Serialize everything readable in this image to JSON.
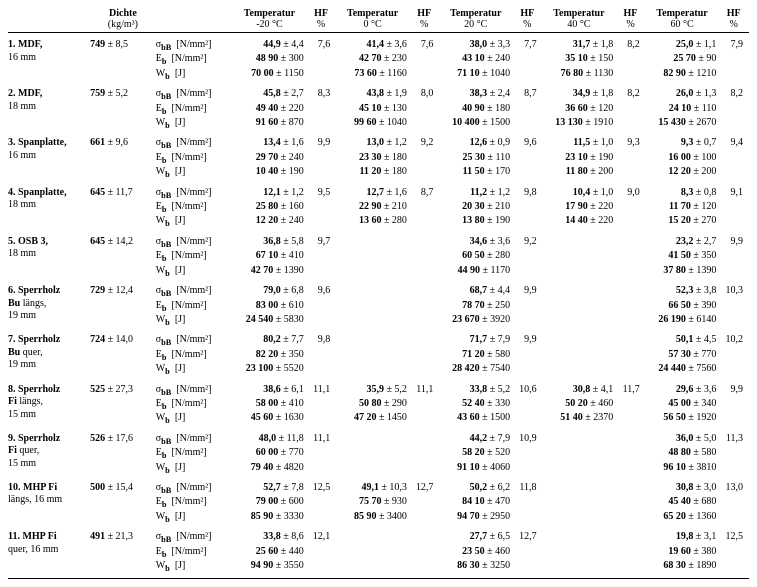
{
  "headers": {
    "dichte": "Dichte",
    "dichte_unit": "(kg/m³)",
    "temp": "Temperatur",
    "hf": "HF",
    "hf_unit": "%",
    "temps": [
      "-20 °C",
      "0 °C",
      "20 °C",
      "40 °C",
      "60 °C"
    ]
  },
  "props": {
    "sigma": "σ_bB  [N/mm²]",
    "e": "E_b  [N/mm²]",
    "w": "W_b  [J]"
  },
  "rows": [
    {
      "mat1": "1. MDF,",
      "mat2": "16 mm",
      "dichte": "749 ± 8,5",
      "t": [
        {
          "s": "44,9 ± 4,4",
          "e": "48 90 ± 300",
          "w": "70 00 ± 1150",
          "hf": "7,6"
        },
        {
          "s": "41,4 ± 3,6",
          "e": "42 70 ± 230",
          "w": "73 60 ± 1160",
          "hf": "7,6"
        },
        {
          "s": "38,0 ± 3,3",
          "e": "43 10 ± 240",
          "w": "71 10 ± 1040",
          "hf": "7,7"
        },
        {
          "s": "31,7 ± 1,8",
          "e": "35 10 ± 150",
          "w": "76 80 ± 1130",
          "hf": "8,2"
        },
        {
          "s": "25,0 ± 1,1",
          "e": "25 70 ± 90",
          "w": "82 90 ± 1210",
          "hf": "7,9"
        }
      ]
    },
    {
      "mat1": "2. MDF,",
      "mat2": "18 mm",
      "dichte": "759 ± 5,2",
      "t": [
        {
          "s": "45,8 ± 2,7",
          "e": "49 40 ± 220",
          "w": "91 60 ± 870",
          "hf": "8,3"
        },
        {
          "s": "43,8 ± 1,9",
          "e": "45 10 ± 130",
          "w": "99 60 ± 1040",
          "hf": "8,0"
        },
        {
          "s": "38,3 ± 2,4",
          "e": "40 90 ± 180",
          "w": "10 400 ± 1500",
          "hf": "8,7"
        },
        {
          "s": "34,9 ± 1,8",
          "e": "36 60 ± 120",
          "w": "13 130 ± 1910",
          "hf": "8,2"
        },
        {
          "s": "26,0 ± 1,3",
          "e": "24 10 ± 110",
          "w": "15 430 ± 2670",
          "hf": "8,2"
        }
      ]
    },
    {
      "mat1": "3. Spanplatte,",
      "mat2": "16 mm",
      "dichte": "661 ± 9,6",
      "t": [
        {
          "s": "13,4 ± 1,6",
          "e": "29 70 ± 240",
          "w": "10 40 ± 190",
          "hf": "9,9"
        },
        {
          "s": "13,0 ± 1,2",
          "e": "23 30 ± 180",
          "w": "11 20 ± 180",
          "hf": "9,2"
        },
        {
          "s": "12,6 ± 0,9",
          "e": "25 30 ± 110",
          "w": "11 50 ± 170",
          "hf": "9,6"
        },
        {
          "s": "11,5 ± 1,0",
          "e": "23 10 ± 190",
          "w": "11 80 ± 200",
          "hf": "9,3"
        },
        {
          "s": "9,3 ± 0,7",
          "e": "16 00 ± 100",
          "w": "12 20 ± 200",
          "hf": "9,4"
        }
      ]
    },
    {
      "mat1": "4. Spanplatte,",
      "mat2": "18 mm",
      "dichte": "645 ± 11,7",
      "t": [
        {
          "s": "12,1 ± 1,2",
          "e": "25 80 ± 160",
          "w": "12 20 ± 240",
          "hf": "9,5"
        },
        {
          "s": "12,7 ± 1,6",
          "e": "22 90 ± 210",
          "w": "13 60 ± 280",
          "hf": "8,7"
        },
        {
          "s": "11,2 ± 1,2",
          "e": "20 30 ± 210",
          "w": "13 80 ± 190",
          "hf": "9,8"
        },
        {
          "s": "10,4 ± 1,0",
          "e": "17 90 ± 220",
          "w": "14 40 ± 220",
          "hf": "9,0"
        },
        {
          "s": "8,3 ± 0,8",
          "e": "11 70 ± 120",
          "w": "15 20 ± 270",
          "hf": "9,1"
        }
      ]
    },
    {
      "mat1": "5. OSB 3,",
      "mat2": "18 mm",
      "dichte": "645 ± 14,2",
      "t": [
        {
          "s": "36,8 ± 5,8",
          "e": "67 10 ± 410",
          "w": "42 70 ± 1390",
          "hf": "9,7"
        },
        {
          "s": "",
          "e": "",
          "w": "",
          "hf": ""
        },
        {
          "s": "34,6 ± 3,6",
          "e": "60 50 ± 280",
          "w": "44 90 ± 1170",
          "hf": "9,2"
        },
        {
          "s": "",
          "e": "",
          "w": "",
          "hf": ""
        },
        {
          "s": "23,2 ± 2,7",
          "e": "41 50 ± 350",
          "w": "37 80 ± 1390",
          "hf": "9,9"
        }
      ]
    },
    {
      "mat1": "6. Sperrholz",
      "mat2b": "Bu",
      "mat2c": " längs,",
      "mat3": "19 mm",
      "dichte": "729 ± 12,4",
      "t": [
        {
          "s": "79,0 ± 6,8",
          "e": "83 00 ± 610",
          "w": "24 540 ± 5830",
          "hf": "9,6"
        },
        {
          "s": "",
          "e": "",
          "w": "",
          "hf": ""
        },
        {
          "s": "68,7 ± 4,4",
          "e": "78 70 ± 250",
          "w": "23 670 ± 3920",
          "hf": "9,9"
        },
        {
          "s": "",
          "e": "",
          "w": "",
          "hf": ""
        },
        {
          "s": "52,3 ± 3,8",
          "e": "66 50 ± 390",
          "w": "26 190 ± 6140",
          "hf": "10,3"
        }
      ]
    },
    {
      "mat1": "7. Sperrholz",
      "mat2b": "Bu",
      "mat2c": " quer,",
      "mat3": "19 mm",
      "dichte": "724 ± 14,0",
      "t": [
        {
          "s": "80,2 ± 7,7",
          "e": "82 20 ± 350",
          "w": "23 100 ± 5520",
          "hf": "9,8"
        },
        {
          "s": "",
          "e": "",
          "w": "",
          "hf": ""
        },
        {
          "s": "71,7 ± 7,9",
          "e": "71 20 ± 580",
          "w": "28 420 ± 7540",
          "hf": "9,9"
        },
        {
          "s": "",
          "e": "",
          "w": "",
          "hf": ""
        },
        {
          "s": "50,1 ± 4,5",
          "e": "57 30 ± 770",
          "w": "24 440 ± 7560",
          "hf": "10,2"
        }
      ]
    },
    {
      "mat1": "8. Sperrholz",
      "mat2b": "Fi",
      "mat2c": " längs,",
      "mat3": "15 mm",
      "dichte": "525 ± 27,3",
      "t": [
        {
          "s": "38,6 ± 6,1",
          "e": "58 00 ± 410",
          "w": "45 60 ± 1630",
          "hf": "11,1"
        },
        {
          "s": "35,9 ± 5,2",
          "e": "50 80 ± 290",
          "w": "47 20 ± 1450",
          "hf": "11,1"
        },
        {
          "s": "33,8 ± 5,2",
          "e": "52 40 ± 330",
          "w": "43 60 ± 1500",
          "hf": "10,6"
        },
        {
          "s": "30,8 ± 4,1",
          "e": "50 20 ± 460",
          "w": "51 40 ± 2370",
          "hf": "11,7"
        },
        {
          "s": "29,6 ± 3,6",
          "e": "45 00 ± 340",
          "w": "56 50 ± 1920",
          "hf": "9,9"
        }
      ]
    },
    {
      "mat1": "9. Sperrholz",
      "mat2b": "Fi",
      "mat2c": " quer,",
      "mat3": "15 mm",
      "dichte": "526 ± 17,6",
      "t": [
        {
          "s": "48,0 ± 11,8",
          "e": "60 00 ± 770",
          "w": "79 40 ± 4820",
          "hf": "11,1"
        },
        {
          "s": "",
          "e": "",
          "w": "",
          "hf": ""
        },
        {
          "s": "44,2 ± 7,9",
          "e": "58 20 ± 520",
          "w": "91 10 ± 4060",
          "hf": "10,9"
        },
        {
          "s": "",
          "e": "",
          "w": "",
          "hf": ""
        },
        {
          "s": "36,0 ± 5,0",
          "e": "48 80 ± 580",
          "w": "96 10 ± 3810",
          "hf": "11,3"
        }
      ]
    },
    {
      "mat1": "10. MHP Fi",
      "mat2": "längs, 16 mm",
      "dichte": "500 ± 15,4",
      "t": [
        {
          "s": "52,7 ± 7,8",
          "e": "79 00 ± 600",
          "w": "85 90 ± 3330",
          "hf": "12,5"
        },
        {
          "s": "49,1 ± 10,3",
          "e": "75 70 ± 930",
          "w": "85 90 ± 3400",
          "hf": "12,7"
        },
        {
          "s": "50,2 ± 6,2",
          "e": "84 10 ± 470",
          "w": "94 70 ± 2950",
          "hf": "11,8"
        },
        {
          "s": "",
          "e": "",
          "w": "",
          "hf": ""
        },
        {
          "s": "30,8 ± 3,0",
          "e": "45 40 ± 680",
          "w": "65 20 ± 1360",
          "hf": "13,0"
        }
      ]
    },
    {
      "mat1": "11. MHP Fi",
      "mat2": "quer, 16 mm",
      "dichte": "491 ± 21,3",
      "t": [
        {
          "s": "33,8 ± 8,6",
          "e": "25 60 ± 440",
          "w": "94 90 ± 3550",
          "hf": "12,1"
        },
        {
          "s": "",
          "e": "",
          "w": "",
          "hf": ""
        },
        {
          "s": "27,7 ± 6,5",
          "e": "23 50 ± 460",
          "w": "86 30 ± 3250",
          "hf": "12,7"
        },
        {
          "s": "",
          "e": "",
          "w": "",
          "hf": ""
        },
        {
          "s": "19,8 ± 3,1",
          "e": "19 60 ± 380",
          "w": "68 30 ± 1890",
          "hf": "12,5"
        }
      ]
    }
  ]
}
